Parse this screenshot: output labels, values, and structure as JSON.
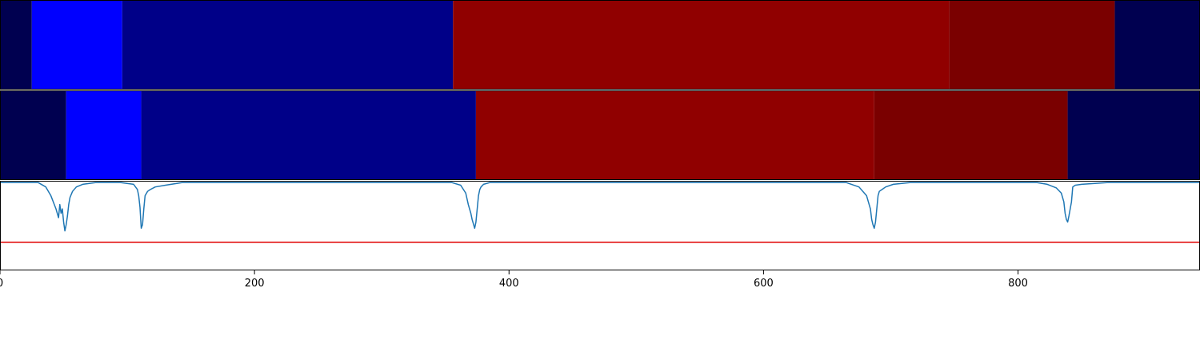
{
  "chart_data": [
    {
      "type": "heatmap",
      "panel": "top-band",
      "xlim": [
        0,
        943
      ],
      "segments": [
        {
          "start": 0,
          "end": 25,
          "color": "#000050"
        },
        {
          "start": 25,
          "end": 96,
          "color": "#0000ff"
        },
        {
          "start": 96,
          "end": 356,
          "color": "#000088"
        },
        {
          "start": 356,
          "end": 746,
          "color": "#900000"
        },
        {
          "start": 746,
          "end": 876,
          "color": "#7a0000"
        },
        {
          "start": 876,
          "end": 943,
          "color": "#000050"
        }
      ]
    },
    {
      "type": "heatmap",
      "panel": "middle-band",
      "xlim": [
        0,
        943
      ],
      "segments": [
        {
          "start": 0,
          "end": 52,
          "color": "#000050"
        },
        {
          "start": 52,
          "end": 111,
          "color": "#0000ff"
        },
        {
          "start": 111,
          "end": 374,
          "color": "#000088"
        },
        {
          "start": 374,
          "end": 687,
          "color": "#900000"
        },
        {
          "start": 687,
          "end": 839,
          "color": "#7a0000"
        },
        {
          "start": 839,
          "end": 943,
          "color": "#000050"
        }
      ]
    },
    {
      "type": "line",
      "panel": "bottom-signal",
      "xlim": [
        0,
        943
      ],
      "ylim": [
        -1.0,
        0.02
      ],
      "threshold": -0.68,
      "line_color": "#1f77b4",
      "threshold_color": "#e00000",
      "grid": false,
      "x_ticks": [
        0,
        200,
        400,
        600,
        800
      ],
      "x_tick_labels": [
        "0",
        "200",
        "400",
        "600",
        "800"
      ],
      "series": [
        {
          "x": [
            0,
            30,
            36,
            40,
            44,
            46,
            47,
            48,
            49,
            50,
            51,
            52,
            53,
            54,
            55,
            57,
            60,
            65,
            75,
            95,
            105,
            108,
            109,
            110,
            111,
            112,
            113,
            114,
            116,
            118,
            122,
            130,
            143,
            355,
            362,
            366,
            368,
            370,
            371,
            372,
            373,
            374,
            375,
            376,
            377,
            378,
            380,
            385,
            395,
            665,
            675,
            681,
            684,
            685,
            686,
            687,
            688,
            689,
            690,
            691,
            693,
            696,
            702,
            715,
            815,
            823,
            830,
            834,
            836,
            837,
            838,
            839,
            840,
            841,
            842,
            843,
            845,
            850,
            870,
            943
          ],
          "y": [
            0,
            0,
            -0.05,
            -0.15,
            -0.3,
            -0.4,
            -0.25,
            -0.35,
            -0.3,
            -0.45,
            -0.55,
            -0.48,
            -0.38,
            -0.25,
            -0.17,
            -0.1,
            -0.05,
            -0.02,
            0,
            0,
            -0.02,
            -0.08,
            -0.15,
            -0.28,
            -0.52,
            -0.48,
            -0.3,
            -0.15,
            -0.1,
            -0.08,
            -0.05,
            -0.03,
            0,
            0,
            -0.03,
            -0.12,
            -0.25,
            -0.35,
            -0.42,
            -0.47,
            -0.52,
            -0.45,
            -0.3,
            -0.15,
            -0.08,
            -0.05,
            -0.02,
            0,
            0,
            0,
            -0.05,
            -0.15,
            -0.3,
            -0.42,
            -0.48,
            -0.52,
            -0.45,
            -0.3,
            -0.15,
            -0.1,
            -0.08,
            -0.05,
            -0.02,
            0,
            0,
            -0.02,
            -0.06,
            -0.12,
            -0.22,
            -0.35,
            -0.42,
            -0.45,
            -0.38,
            -0.3,
            -0.22,
            -0.05,
            -0.03,
            -0.02,
            0,
            0
          ]
        }
      ]
    }
  ]
}
